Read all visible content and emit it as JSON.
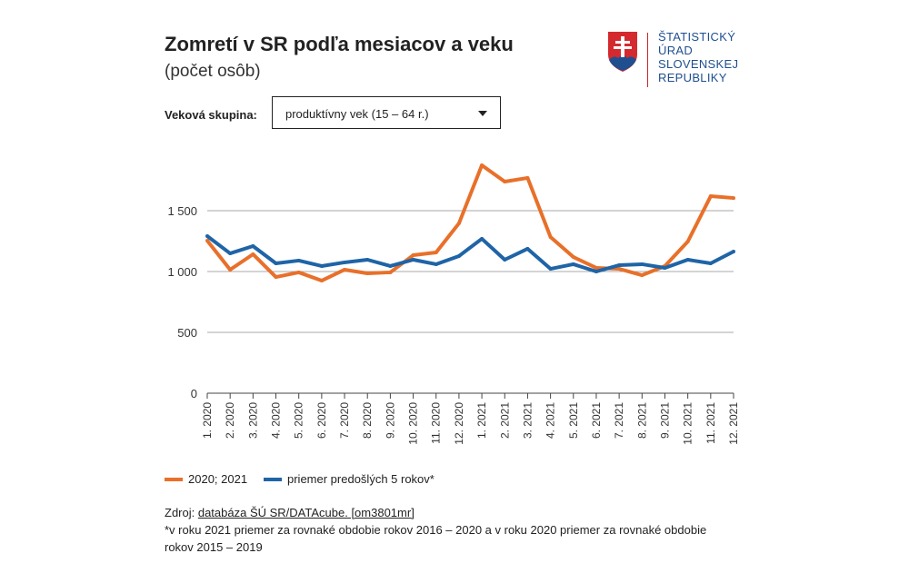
{
  "title": "Zomretí v SR podľa mesiacov a veku",
  "subtitle": "(počet osôb)",
  "logo": {
    "lines": [
      "ŠTATISTICKÝ",
      "ÚRAD",
      "SLOVENSKEJ",
      "REPUBLIKY"
    ]
  },
  "filter": {
    "label": "Veková skupina:",
    "value": "produktívny vek (15 – 64 r.)"
  },
  "source": {
    "prefix": "Zdroj: ",
    "link": "databáza ŠÚ SR/DATAcube. [om3801mr]",
    "note": "*v roku 2021 priemer za rovnaké obdobie rokov 2016 – 2020 a v roku 2020 priemer za rovnaké obdobie rokov 2015 – 2019"
  },
  "chart_data": {
    "type": "line",
    "categories": [
      "1. 2020",
      "2. 2020",
      "3. 2020",
      "4. 2020",
      "5. 2020",
      "6. 2020",
      "7. 2020",
      "8. 2020",
      "9. 2020",
      "10. 2020",
      "11. 2020",
      "12. 2020",
      "1. 2021",
      "2. 2021",
      "3. 2021",
      "4. 2021",
      "5. 2021",
      "6. 2021",
      "7. 2021",
      "8. 2021",
      "9. 2021",
      "10. 2021",
      "11. 2021",
      "12. 2021"
    ],
    "ylim": [
      0,
      1900
    ],
    "yticks": [
      0,
      500,
      1000,
      1500
    ],
    "ytick_labels": [
      "0",
      "500",
      "1 000",
      "1 500"
    ],
    "grid": true,
    "legend_position": "bottom-left",
    "series": [
      {
        "name": "2020; 2021",
        "color": "#e8702a",
        "values": [
          1254,
          1015,
          1142,
          955,
          993,
          925,
          1015,
          985,
          993,
          1134,
          1157,
          1396,
          1873,
          1739,
          1769,
          1284,
          1119,
          1030,
          1022,
          970,
          1045,
          1246,
          1619,
          1604
        ]
      },
      {
        "name": "priemer predošlých 5 rokov*",
        "color": "#1f64a6",
        "values": [
          1291,
          1149,
          1209,
          1067,
          1090,
          1045,
          1075,
          1097,
          1045,
          1097,
          1060,
          1127,
          1269,
          1097,
          1187,
          1022,
          1060,
          1000,
          1052,
          1060,
          1030,
          1097,
          1067,
          1164
        ]
      }
    ]
  }
}
